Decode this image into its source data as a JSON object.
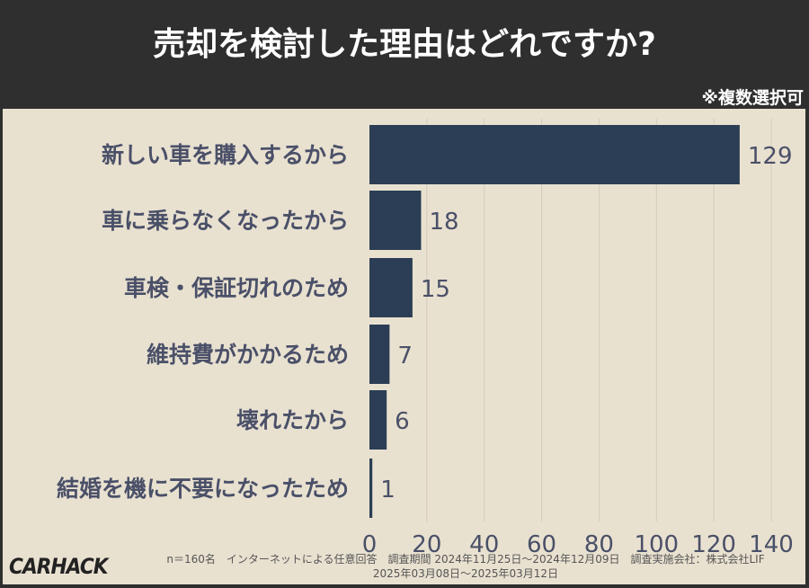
{
  "header": {
    "title": "売却を検討した理由はどれですか?",
    "note": "※複数選択可"
  },
  "chart_data": {
    "type": "bar",
    "orientation": "horizontal",
    "categories": [
      "新しい車を購入するから",
      "車に乗らなくなったから",
      "車検・保証切れのため",
      "維持費がかかるため",
      "壊れたから",
      "結婚を機に不要になったため"
    ],
    "values": [
      129,
      18,
      15,
      7,
      6,
      1
    ],
    "xlim": [
      0,
      140
    ],
    "xticks": [
      0,
      20,
      40,
      60,
      80,
      100,
      120,
      140
    ],
    "grid": true,
    "bar_color": "#2b3e55"
  },
  "footer": {
    "logo": "CARHACK",
    "line1": "n＝160名　インターネットによる任意回答　調査期間 2024年11月25日～2024年12月09日　調査実施会社：株式会社LIF",
    "line2": "2025年03月08日～2025年03月12日"
  }
}
